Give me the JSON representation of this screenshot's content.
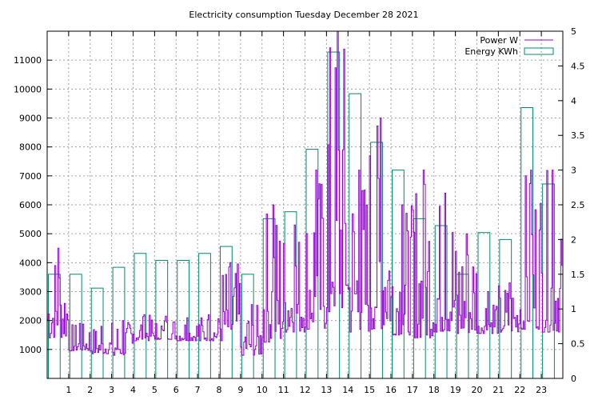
{
  "chart_data": {
    "type": "bar",
    "title": "Electricity consumption Tuesday December 28 2021",
    "xlabel": "",
    "ylabel": "",
    "y2label": "",
    "x_ticks": [
      "1",
      "2",
      "3",
      "4",
      "5",
      "6",
      "7",
      "8",
      "9",
      "10",
      "11",
      "12",
      "13",
      "14",
      "15",
      "16",
      "17",
      "18",
      "19",
      "20",
      "21",
      "22",
      "23"
    ],
    "xlim": [
      0,
      24
    ],
    "ylim": [
      0,
      12000
    ],
    "y2lim": [
      0,
      5
    ],
    "y_ticks": [
      1000,
      2000,
      3000,
      4000,
      5000,
      6000,
      7000,
      8000,
      9000,
      10000,
      11000
    ],
    "y2_ticks": [
      "0",
      "0.5",
      "1",
      "1.5",
      "2",
      "2.5",
      "3",
      "3.5",
      "4",
      "4.5",
      "5"
    ],
    "grid": true,
    "legend_position": "top-right",
    "series": [
      {
        "name": "Power W",
        "kind": "line",
        "color": "#9400d3",
        "hourly_min": [
          1400,
          950,
          850,
          800,
          1300,
          1350,
          1300,
          1300,
          1300,
          800,
          1250,
          1600,
          1700,
          2300,
          1600,
          1700,
          1500,
          1400,
          1600,
          1550,
          1550,
          1600,
          1700,
          1600
        ],
        "hourly_max": [
          4500,
          1900,
          1800,
          2000,
          2200,
          2150,
          2100,
          2200,
          4000,
          2550,
          6000,
          5300,
          7200,
          12000,
          7200,
          9000,
          6000,
          7200,
          6400,
          5000,
          3000,
          3300,
          7200,
          7200
        ]
      },
      {
        "name": "Energy KWh",
        "kind": "bar",
        "axis": "y2",
        "color": "#008b6b",
        "hours": [
          0,
          1,
          2,
          3,
          4,
          5,
          6,
          7,
          8,
          9,
          10,
          11,
          12,
          13,
          14,
          15,
          16,
          17,
          18,
          19,
          20,
          21,
          22,
          23
        ],
        "values": [
          1.5,
          1.5,
          1.3,
          1.6,
          1.8,
          1.7,
          1.7,
          1.8,
          1.9,
          1.5,
          2.3,
          2.4,
          3.3,
          4.7,
          4.1,
          3.4,
          3.0,
          2.3,
          2.2,
          1.5,
          2.1,
          2.0,
          3.9,
          2.8
        ]
      }
    ]
  }
}
